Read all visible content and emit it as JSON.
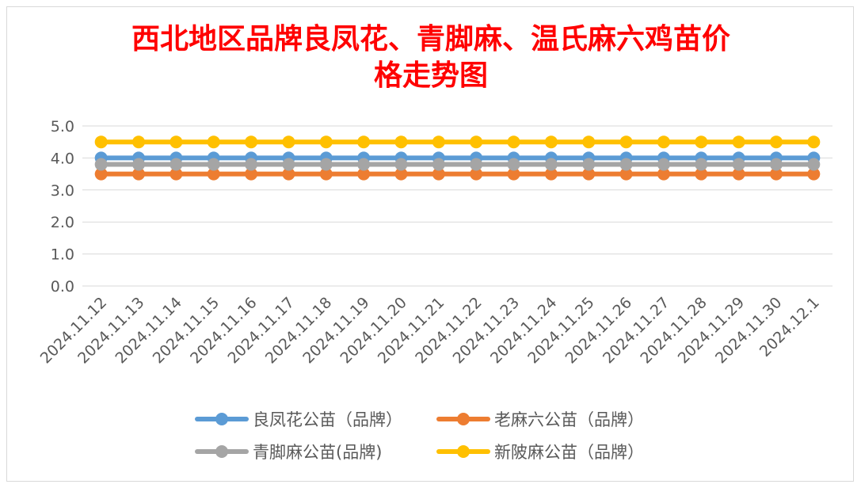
{
  "chart_data": {
    "type": "line",
    "title_line1": "西北地区品牌良凤花、青脚麻、温氏麻六鸡苗价",
    "title_line2": "格走势图",
    "categories": [
      "2024.11.12",
      "2024.11.13",
      "2024.11.14",
      "2024.11.15",
      "2024.11.16",
      "2024.11.17",
      "2024.11.18",
      "2024.11.19",
      "2024.11.20",
      "2024.11.21",
      "2024.11.22",
      "2024.11.23",
      "2024.11.24",
      "2024.11.25",
      "2024.11.26",
      "2024.11.27",
      "2024.11.28",
      "2024.11.29",
      "2024.11.30",
      "2024.12.1"
    ],
    "yticks": [
      "0.0",
      "1.0",
      "2.0",
      "3.0",
      "4.0",
      "5.0"
    ],
    "ylim": [
      0,
      5
    ],
    "grid": true,
    "legend_position": "bottom",
    "series": [
      {
        "name": "良凤花公苗（品牌）",
        "color": "#5b9bd5",
        "values": [
          4,
          4,
          4,
          4,
          4,
          4,
          4,
          4,
          4,
          4,
          4,
          4,
          4,
          4,
          4,
          4,
          4,
          4,
          4,
          4
        ]
      },
      {
        "name": "老麻六公苗（品牌）",
        "color": "#ed7d31",
        "values": [
          3.5,
          3.5,
          3.5,
          3.5,
          3.5,
          3.5,
          3.5,
          3.5,
          3.5,
          3.5,
          3.5,
          3.5,
          3.5,
          3.5,
          3.5,
          3.5,
          3.5,
          3.5,
          3.5,
          3.5
        ]
      },
      {
        "name": "青脚麻公苗(品牌)",
        "color": "#a5a5a5",
        "values": [
          3.8,
          3.8,
          3.8,
          3.8,
          3.8,
          3.8,
          3.8,
          3.8,
          3.8,
          3.8,
          3.8,
          3.8,
          3.8,
          3.8,
          3.8,
          3.8,
          3.8,
          3.8,
          3.8,
          3.8
        ]
      },
      {
        "name": "新陂麻公苗（品牌）",
        "color": "#ffc000",
        "values": [
          4.5,
          4.5,
          4.5,
          4.5,
          4.5,
          4.5,
          4.5,
          4.5,
          4.5,
          4.5,
          4.5,
          4.5,
          4.5,
          4.5,
          4.5,
          4.5,
          4.5,
          4.5,
          4.5,
          4.5
        ]
      }
    ]
  }
}
